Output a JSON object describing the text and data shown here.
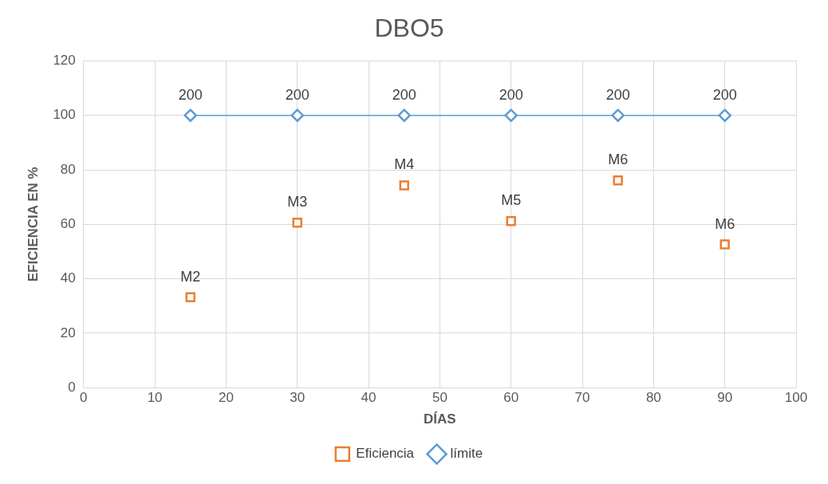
{
  "chart_data": {
    "type": "scatter",
    "title": "DBO5",
    "xlabel": "DÍAS",
    "ylabel": "EFICIENCIA EN %",
    "x": [
      15,
      30,
      45,
      60,
      75,
      90
    ],
    "series": [
      {
        "name": "Eficiencia",
        "type": "scatter",
        "marker": "square",
        "color": "#ed7d31",
        "values": [
          33.2,
          60.6,
          74.3,
          61.2,
          76.1,
          52.6
        ],
        "value_labels": [
          "M2",
          "M3",
          "M4",
          "M5",
          "M6",
          "M6"
        ]
      },
      {
        "name": "límite",
        "type": "line",
        "marker": "diamond",
        "color": "#5b9bd5",
        "values": [
          100,
          100,
          100,
          100,
          100,
          100
        ]
      }
    ],
    "annotations": [
      {
        "text": "200",
        "x": 15,
        "y": 100
      },
      {
        "text": "200",
        "x": 30,
        "y": 100
      },
      {
        "text": "200",
        "x": 45,
        "y": 100
      },
      {
        "text": "200",
        "x": 60,
        "y": 100
      },
      {
        "text": "200",
        "x": 75,
        "y": 100
      },
      {
        "text": "200",
        "x": 90,
        "y": 100
      }
    ],
    "xlim": [
      0,
      100
    ],
    "xticks": [
      0,
      10,
      20,
      30,
      40,
      50,
      60,
      70,
      80,
      90,
      100
    ],
    "ylim": [
      0,
      120
    ],
    "yticks": [
      0,
      20,
      40,
      60,
      80,
      100,
      120
    ],
    "grid": true,
    "legend": "bottom"
  }
}
